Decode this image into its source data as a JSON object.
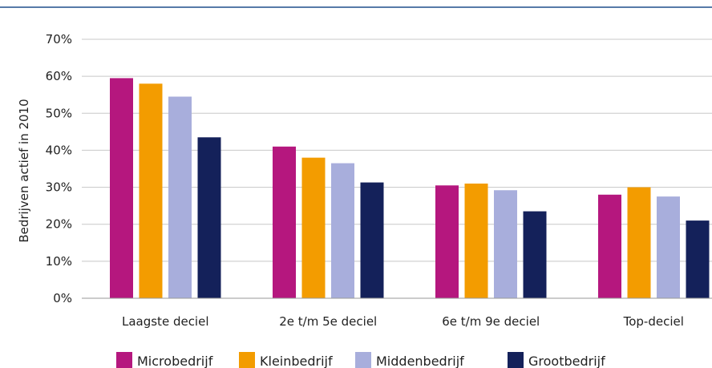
{
  "chart_data": {
    "type": "bar",
    "title": "",
    "xlabel": "",
    "ylabel": "Bedrijven actief in 2010",
    "ylim": [
      0,
      70
    ],
    "yticks": [
      "0%",
      "10%",
      "20%",
      "30%",
      "40%",
      "50%",
      "60%",
      "70%"
    ],
    "categories": [
      "Laagste deciel",
      "2e t/m 5e deciel",
      "6e t/m 9e deciel",
      "Top-deciel"
    ],
    "series": [
      {
        "name": "Microbedrijf",
        "color": "#b5177e",
        "values": [
          59.5,
          41,
          30.5,
          28
        ]
      },
      {
        "name": "Kleinbedrijf",
        "color": "#f39c00",
        "values": [
          58,
          38,
          31,
          30
        ]
      },
      {
        "name": "Middenbedrijf",
        "color": "#a8aedc",
        "values": [
          54.5,
          36.5,
          29.2,
          27.5
        ]
      },
      {
        "name": "Grootbedrijf",
        "color": "#14215a",
        "values": [
          43.5,
          31.3,
          23.5,
          21
        ]
      }
    ],
    "grid": true,
    "legend_position": "bottom",
    "top_rule_color": "#1f4e8c"
  }
}
